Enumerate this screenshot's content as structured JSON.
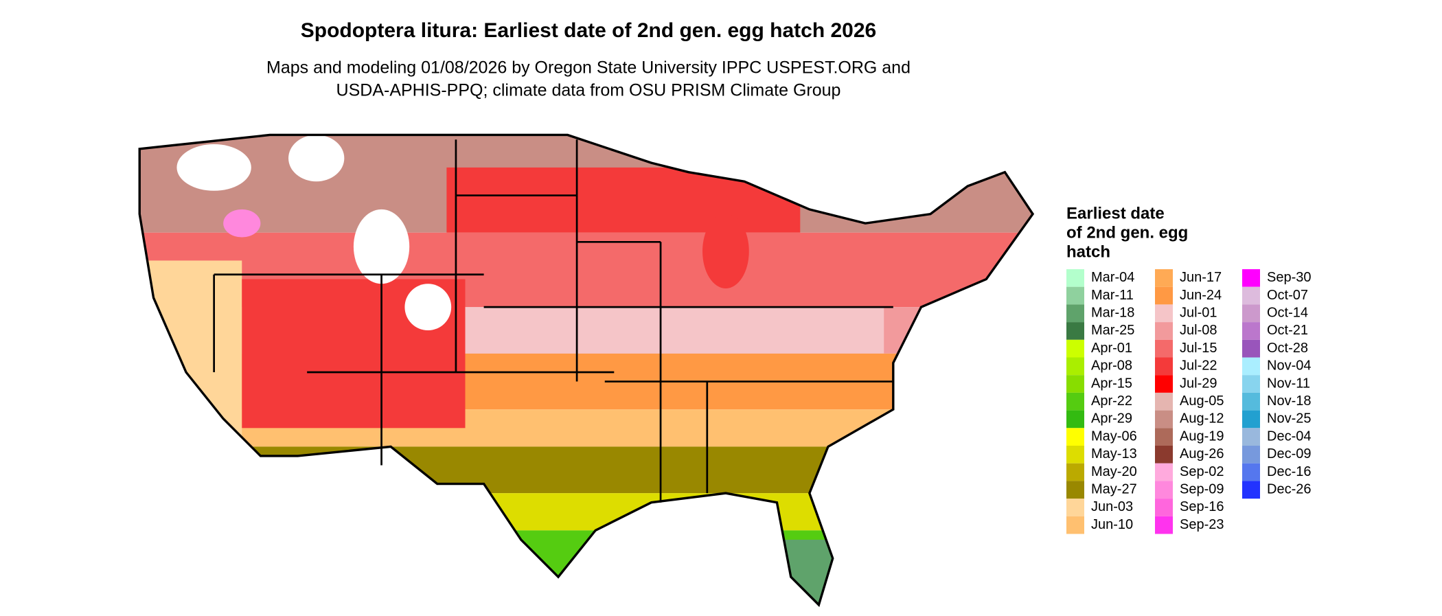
{
  "header": {
    "title": "Spodoptera litura: Earliest date of 2nd gen. egg hatch 2026",
    "subtitle_lines": [
      "Maps and modeling 01/08/2026 by Oregon State University IPPC USPEST.ORG and",
      "USDA-APHIS-PPQ; climate data from OSU PRISM Climate Group"
    ]
  },
  "legend": {
    "title_lines": [
      "Earliest date",
      "of 2nd gen. egg",
      "hatch"
    ],
    "columns": [
      [
        {
          "label": "Mar-04",
          "color": "#b3ffcc"
        },
        {
          "label": "Mar-11",
          "color": "#8fd19e"
        },
        {
          "label": "Mar-18",
          "color": "#5fa36b"
        },
        {
          "label": "Mar-25",
          "color": "#3a7a43"
        },
        {
          "label": "Apr-01",
          "color": "#ccff00"
        },
        {
          "label": "Apr-08",
          "color": "#aaee00"
        },
        {
          "label": "Apr-15",
          "color": "#88dd00"
        },
        {
          "label": "Apr-22",
          "color": "#55cc11"
        },
        {
          "label": "Apr-29",
          "color": "#33bb11"
        },
        {
          "label": "May-06",
          "color": "#ffff00"
        },
        {
          "label": "May-13",
          "color": "#dddd00"
        },
        {
          "label": "May-20",
          "color": "#bbaa00"
        },
        {
          "label": "May-27",
          "color": "#998800"
        },
        {
          "label": "Jun-03",
          "color": "#ffd699"
        },
        {
          "label": "Jun-10",
          "color": "#ffc070"
        }
      ],
      [
        {
          "label": "Jun-17",
          "color": "#ffaa55"
        },
        {
          "label": "Jun-24",
          "color": "#ff9944"
        },
        {
          "label": "Jul-01",
          "color": "#f5c5c8"
        },
        {
          "label": "Jul-08",
          "color": "#f29a9c"
        },
        {
          "label": "Jul-15",
          "color": "#f46a6a"
        },
        {
          "label": "Jul-22",
          "color": "#f43a3a"
        },
        {
          "label": "Jul-29",
          "color": "#ff0000"
        },
        {
          "label": "Aug-05",
          "color": "#e5b5b0"
        },
        {
          "label": "Aug-12",
          "color": "#c98e85"
        },
        {
          "label": "Aug-19",
          "color": "#ad6a5a"
        },
        {
          "label": "Aug-26",
          "color": "#8b3a2e"
        },
        {
          "label": "Sep-02",
          "color": "#ffaadd"
        },
        {
          "label": "Sep-09",
          "color": "#ff88dd"
        },
        {
          "label": "Sep-16",
          "color": "#ff66dd"
        },
        {
          "label": "Sep-23",
          "color": "#ff33ee"
        }
      ],
      [
        {
          "label": "Sep-30",
          "color": "#ff00ff"
        },
        {
          "label": "Oct-07",
          "color": "#ddbbdd"
        },
        {
          "label": "Oct-14",
          "color": "#cc99cc"
        },
        {
          "label": "Oct-21",
          "color": "#bb77cc"
        },
        {
          "label": "Oct-28",
          "color": "#9955bb"
        },
        {
          "label": "Nov-04",
          "color": "#aaeeff"
        },
        {
          "label": "Nov-11",
          "color": "#88d4ee"
        },
        {
          "label": "Nov-18",
          "color": "#55bbdd"
        },
        {
          "label": "Nov-25",
          "color": "#22a0d0"
        },
        {
          "label": "Dec-04",
          "color": "#99b8dd"
        },
        {
          "label": "Dec-09",
          "color": "#7799dd"
        },
        {
          "label": "Dec-16",
          "color": "#5577ee"
        },
        {
          "label": "Dec-26",
          "color": "#2233ff"
        }
      ]
    ]
  }
}
